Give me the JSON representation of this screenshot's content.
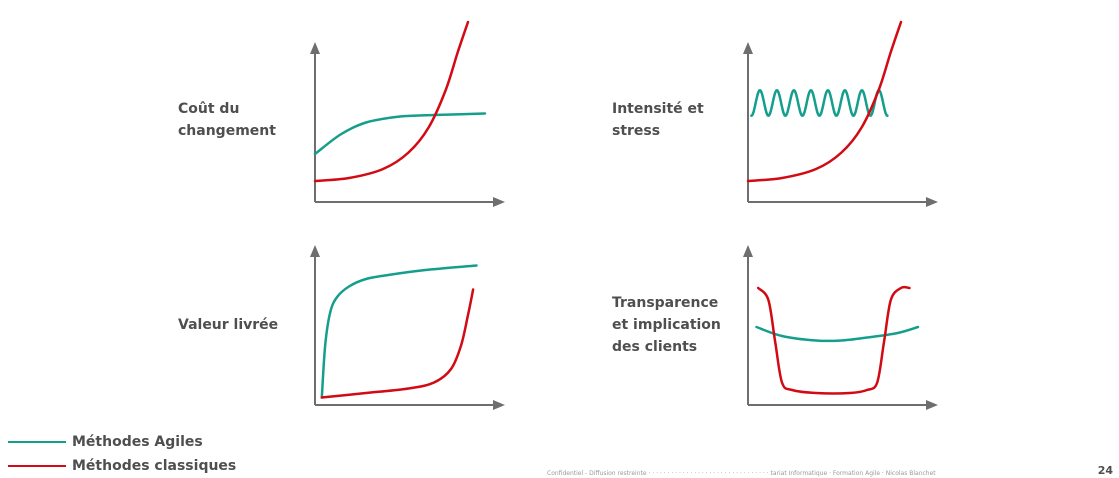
{
  "colors": {
    "agile": "#149e8c",
    "classic": "#d20a14",
    "axis": "#6e6e6e"
  },
  "labels": {
    "cout": "Coût du\nchangement",
    "intensite": "Intensité et\nstress",
    "valeur": "Valeur livrée",
    "transparence": "Transparence\net implication\ndes clients"
  },
  "legend": {
    "agile": "Méthodes Agiles",
    "classic": "Méthodes classiques"
  },
  "footer": {
    "text": "Confidentiel - Diffusion restreinte · · · · · · · · · · · · · · · · · · · · · · · · · · · · · · · ·  tariat Informatique · Formation Agile · Nicolas Blanchet"
  },
  "page_number": "24",
  "chart_data": [
    {
      "type": "line",
      "id": "cout",
      "series": [
        {
          "key": "agile",
          "name": "Méthodes Agiles",
          "x": [
            0,
            0.15,
            0.3,
            0.5,
            0.7,
            1.0
          ],
          "y": [
            0.32,
            0.45,
            0.53,
            0.57,
            0.58,
            0.59
          ]
        },
        {
          "key": "classic",
          "name": "Méthodes classiques",
          "x": [
            0,
            0.2,
            0.4,
            0.55,
            0.67,
            0.77,
            0.84,
            0.9
          ],
          "y": [
            0.14,
            0.16,
            0.22,
            0.33,
            0.5,
            0.75,
            1.0,
            1.2
          ]
        }
      ]
    },
    {
      "type": "line",
      "id": "intensite",
      "series": [
        {
          "key": "agile",
          "name": "Méthodes Agiles",
          "wave": {
            "x0": 0.02,
            "x1": 0.82,
            "cycles": 8,
            "center": 0.66,
            "amplitude": 0.085
          }
        },
        {
          "key": "classic",
          "name": "Méthodes classiques",
          "x": [
            0,
            0.2,
            0.4,
            0.55,
            0.67,
            0.77,
            0.84,
            0.9
          ],
          "y": [
            0.14,
            0.16,
            0.22,
            0.33,
            0.5,
            0.75,
            1.0,
            1.2
          ]
        }
      ]
    },
    {
      "type": "line",
      "id": "valeur",
      "series": [
        {
          "key": "agile",
          "name": "Méthodes Agiles",
          "x": [
            0.04,
            0.06,
            0.09,
            0.13,
            0.2,
            0.3,
            0.45,
            0.65,
            0.95
          ],
          "y": [
            0.05,
            0.4,
            0.62,
            0.72,
            0.79,
            0.84,
            0.87,
            0.9,
            0.93
          ]
        },
        {
          "key": "classic",
          "name": "Méthodes classiques",
          "x": [
            0.04,
            0.3,
            0.55,
            0.7,
            0.8,
            0.86,
            0.9,
            0.93
          ],
          "y": [
            0.05,
            0.08,
            0.11,
            0.15,
            0.24,
            0.4,
            0.6,
            0.77
          ]
        }
      ]
    },
    {
      "type": "line",
      "id": "transparence",
      "series": [
        {
          "key": "agile",
          "name": "Méthodes Agiles",
          "x": [
            0.05,
            0.2,
            0.4,
            0.55,
            0.7,
            0.88,
            1.0
          ],
          "y": [
            0.52,
            0.46,
            0.43,
            0.43,
            0.45,
            0.48,
            0.52
          ]
        },
        {
          "key": "classic",
          "name": "Méthodes classiques",
          "x": [
            0.06,
            0.12,
            0.16,
            0.2,
            0.26,
            0.4,
            0.6,
            0.7,
            0.76,
            0.8,
            0.84,
            0.9,
            0.95
          ],
          "y": [
            0.78,
            0.7,
            0.42,
            0.15,
            0.1,
            0.08,
            0.08,
            0.1,
            0.15,
            0.42,
            0.7,
            0.78,
            0.78
          ]
        }
      ]
    }
  ]
}
